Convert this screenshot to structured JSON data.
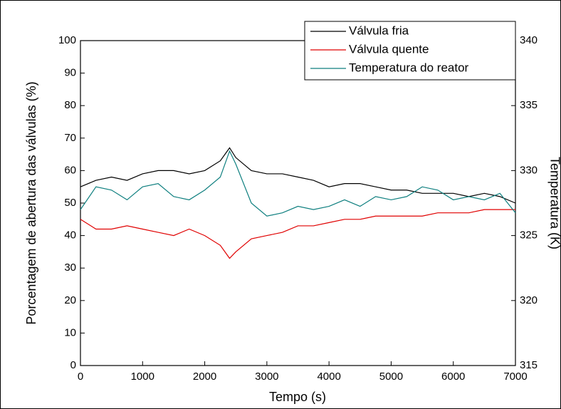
{
  "chart_data": {
    "type": "line",
    "x_label": "Tempo (s)",
    "y_label": "Porcentagem de abertura das válvulas (%)",
    "y2_label": "Temperatura (K)",
    "x": [
      0,
      250,
      500,
      750,
      1000,
      1250,
      1500,
      1750,
      2000,
      2250,
      2400,
      2500,
      2750,
      3000,
      3250,
      3500,
      3750,
      4000,
      4250,
      4500,
      4750,
      5000,
      5250,
      5500,
      5750,
      6000,
      6250,
      6500,
      6750,
      7000
    ],
    "xlim": [
      0,
      7000
    ],
    "xticks": [
      0,
      1000,
      2000,
      3000,
      4000,
      5000,
      6000,
      7000
    ],
    "ylim": [
      0,
      100
    ],
    "yticks": [
      0,
      10,
      20,
      30,
      40,
      50,
      60,
      70,
      80,
      90,
      100
    ],
    "y2lim": [
      315,
      340
    ],
    "y2ticks": [
      315,
      320,
      325,
      330,
      335,
      340
    ],
    "legend": "upper right",
    "series": [
      {
        "name": "Válvula fria",
        "color": "#000000",
        "values": [
          55,
          57,
          58,
          57,
          59,
          60,
          60,
          59,
          60,
          63,
          67,
          64,
          60,
          59,
          59,
          58,
          57,
          55,
          56,
          56,
          55,
          54,
          54,
          53,
          53,
          53,
          52,
          53,
          52,
          50
        ]
      },
      {
        "name": "Válvula quente",
        "color": "#e00000",
        "values": [
          45,
          42,
          42,
          43,
          42,
          41,
          40,
          42,
          40,
          37,
          33,
          35,
          39,
          40,
          41,
          43,
          43,
          44,
          45,
          45,
          46,
          46,
          46,
          46,
          47,
          47,
          47,
          48,
          48,
          48
        ]
      },
      {
        "name": "Temperatura do reator",
        "color": "#0e7f7f",
        "axis": "y2",
        "values": [
          327,
          328.75,
          328.5,
          327.75,
          328.75,
          329,
          328,
          327.75,
          328.5,
          329.5,
          331.5,
          330.5,
          327.5,
          326.5,
          326.75,
          327.25,
          327,
          327.25,
          327.75,
          327.25,
          328,
          327.75,
          328,
          328.75,
          328.5,
          327.75,
          328,
          327.75,
          328.25,
          326.75
        ]
      }
    ]
  }
}
